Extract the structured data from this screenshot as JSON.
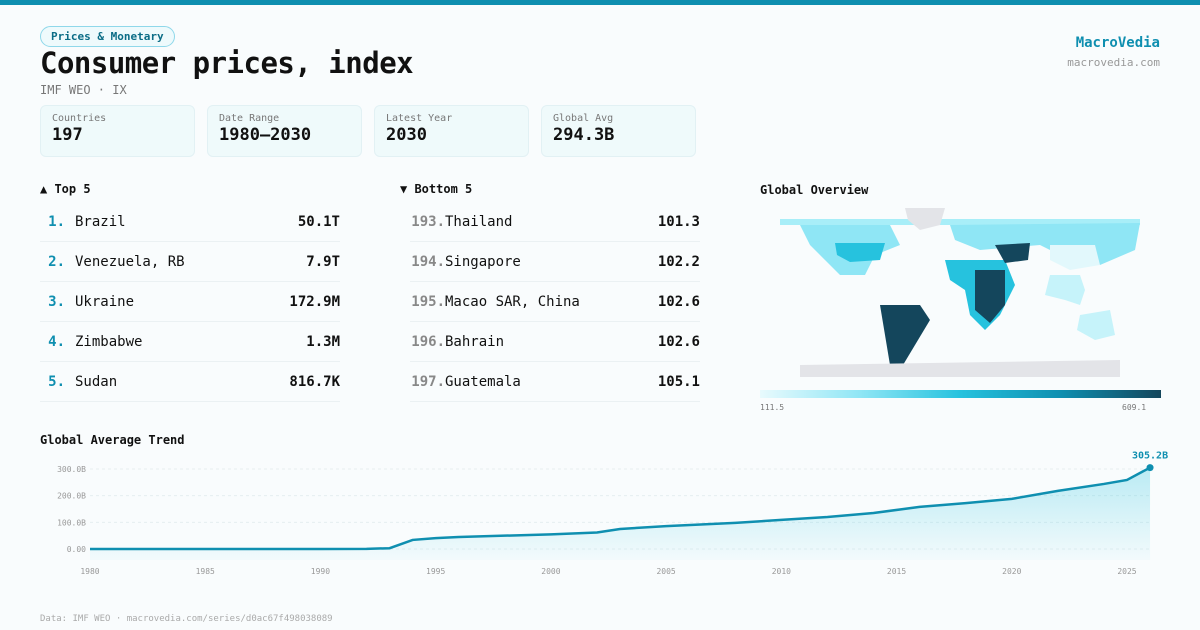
{
  "header": {
    "category": "Prices & Monetary",
    "title": "Consumer prices, index",
    "subtitle": "IMF WEO · IX",
    "brand": "MacroVedia",
    "brand_url": "macrovedia.com"
  },
  "stats": [
    {
      "label": "Countries",
      "value": "197"
    },
    {
      "label": "Date Range",
      "value": "1980–2030"
    },
    {
      "label": "Latest Year",
      "value": "2030"
    },
    {
      "label": "Global Avg",
      "value": "294.3B"
    }
  ],
  "top": {
    "title": "▲ Top 5",
    "items": [
      {
        "rank": "1.",
        "name": "Brazil",
        "value": "50.1T"
      },
      {
        "rank": "2.",
        "name": "Venezuela, RB",
        "value": "7.9T"
      },
      {
        "rank": "3.",
        "name": "Ukraine",
        "value": "172.9M"
      },
      {
        "rank": "4.",
        "name": "Zimbabwe",
        "value": "1.3M"
      },
      {
        "rank": "5.",
        "name": "Sudan",
        "value": "816.7K"
      }
    ]
  },
  "bottom": {
    "title": "▼ Bottom 5",
    "items": [
      {
        "rank": "193.",
        "name": "Thailand",
        "value": "101.3"
      },
      {
        "rank": "194.",
        "name": "Singapore",
        "value": "102.2"
      },
      {
        "rank": "195.",
        "name": "Macao SAR, China",
        "value": "102.6"
      },
      {
        "rank": "196.",
        "name": "Bahrain",
        "value": "102.6"
      },
      {
        "rank": "197.",
        "name": "Guatemala",
        "value": "105.1"
      }
    ]
  },
  "map": {
    "title": "Global Overview",
    "scale_min": "111.5",
    "scale_max": "609.1",
    "colors": [
      "#e8fafd",
      "#8fe6f5",
      "#26c2de",
      "#0f8fb0",
      "#14465c"
    ]
  },
  "footer": "Data: IMF WEO · macrovedia.com/series/d0ac67f498038089",
  "chart_data": {
    "type": "area",
    "title": "Global Average Trend",
    "x": [
      1980,
      1985,
      1990,
      1992,
      1993,
      1994,
      1995,
      1996,
      1998,
      2000,
      2002,
      2003,
      2005,
      2008,
      2010,
      2012,
      2014,
      2016,
      2018,
      2020,
      2022,
      2024,
      2025,
      2026
    ],
    "y": [
      0,
      0,
      0,
      0.5,
      3,
      34,
      41,
      45,
      50,
      55,
      62,
      75,
      86,
      98,
      109,
      120,
      135,
      158,
      172,
      188,
      218,
      244,
      259,
      305.2
    ],
    "yticks": [
      0,
      100,
      200,
      300
    ],
    "ytick_labels": [
      "0.00",
      "100.0B",
      "200.0B",
      "300.0B"
    ],
    "xticks": [
      "1980",
      "1985",
      "1990",
      "1995",
      "2000",
      "2005",
      "2010",
      "2015",
      "2020",
      "2025"
    ],
    "xlim": [
      1980,
      2026
    ],
    "ylim": [
      0,
      300
    ],
    "last_label": "305.2B",
    "color": "#0f8fb0",
    "grid": true
  }
}
